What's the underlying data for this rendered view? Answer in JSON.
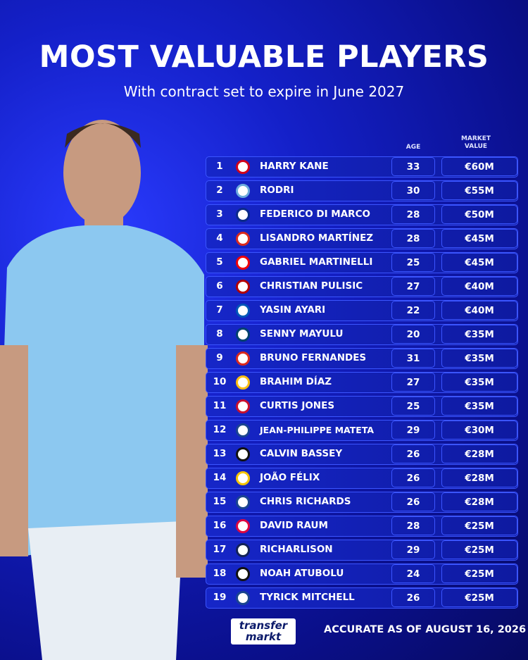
{
  "header": {
    "title": "MOST VALUABLE PLAYERS",
    "subtitle": "With contract set to expire in June 2027"
  },
  "table": {
    "columns": [
      "AGE",
      "MARKET VALUE"
    ],
    "rows": [
      [
        1,
        "HARRY KANE",
        33,
        "€60M"
      ],
      [
        2,
        "RODRI",
        30,
        "€55M"
      ],
      [
        3,
        "FEDERICO DI MARCO",
        28,
        "€50M"
      ],
      [
        4,
        "LISANDRO MARTÍNEZ",
        28,
        "€45M"
      ],
      [
        5,
        "GABRIEL MARTINELLI",
        25,
        "€45M"
      ],
      [
        6,
        "CHRISTIAN PULISIC",
        27,
        "€40M"
      ],
      [
        7,
        "YASIN AYARI",
        22,
        "€40M"
      ],
      [
        8,
        "SENNY MAYULU",
        20,
        "€35M"
      ],
      [
        9,
        "BRUNO FERNANDES",
        31,
        "€35M"
      ],
      [
        10,
        "BRAHIM DÍAZ",
        27,
        "€35M"
      ],
      [
        11,
        "CURTIS JONES",
        25,
        "€35M"
      ],
      [
        12,
        "JEAN-PHILIPPE MATETA",
        29,
        "€30M"
      ],
      [
        13,
        "CALVIN BASSEY",
        26,
        "€28M"
      ],
      [
        14,
        "JOÃO FÉLIX",
        26,
        "€28M"
      ],
      [
        15,
        "CHRIS RICHARDS",
        26,
        "€28M"
      ],
      [
        16,
        "DAVID RAUM",
        28,
        "€25M"
      ],
      [
        17,
        "RICHARLISON",
        29,
        "€25M"
      ],
      [
        18,
        "NOAH ATUBOLU",
        24,
        "€25M"
      ],
      [
        19,
        "TYRICK MITCHELL",
        26,
        "€25M"
      ]
    ]
  },
  "footer": {
    "logo": [
      "transfer",
      "markt"
    ],
    "note": "ACCURATE AS OF AUGUST 16, 2026"
  }
}
